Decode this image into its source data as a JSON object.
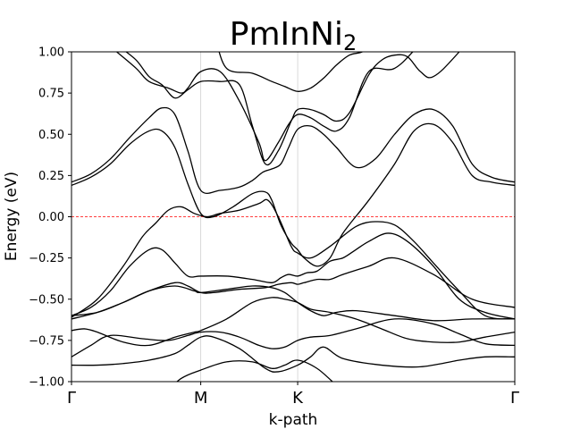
{
  "chart_data": {
    "type": "line",
    "title": "PmInNi",
    "title_subscript": "2",
    "xlabel": "k-path",
    "ylabel": "Energy (eV)",
    "ylim": [
      -1.0,
      1.0
    ],
    "yticks": [
      "-1.00",
      "-0.75",
      "-0.50",
      "-0.25",
      "0.00",
      "0.25",
      "0.50",
      "0.75",
      "1.00"
    ],
    "ytick_values": [
      -1.0,
      -0.75,
      -0.5,
      -0.25,
      0.0,
      0.25,
      0.5,
      0.75,
      1.0
    ],
    "kpoints": [
      {
        "label": "Γ",
        "x": 0.0
      },
      {
        "label": "M",
        "x": 1.0
      },
      {
        "label": "K",
        "x": 1.75
      },
      {
        "label": "Γ",
        "x": 3.43
      }
    ],
    "xlim": [
      0.0,
      3.43
    ],
    "fermi_level": 0.0,
    "fermi_color": "#ff0000",
    "band_color": "#000000",
    "gridlines": "vertical at high-symmetry points",
    "bands": [
      {
        "x": [
          0.0,
          0.3,
          0.55,
          0.7,
          0.85,
          1.0,
          1.2,
          1.4,
          1.55,
          1.65,
          1.75,
          1.9,
          2.05,
          2.2,
          2.5,
          2.8,
          3.1,
          3.43
        ],
        "y": [
          -1.25,
          -1.2,
          -1.15,
          -1.08,
          -0.98,
          -0.93,
          -0.88,
          -0.88,
          -0.92,
          -0.9,
          -0.87,
          -0.92,
          -1.02,
          -1.1,
          -1.2,
          -1.25,
          -1.25,
          -1.25
        ]
      },
      {
        "x": [
          0.0,
          0.2,
          0.4,
          0.6,
          0.8,
          0.9,
          1.0,
          1.1,
          1.3,
          1.5,
          1.6,
          1.75,
          1.85,
          1.95,
          2.1,
          2.4,
          2.7,
          3.0,
          3.2,
          3.43
        ],
        "y": [
          -0.9,
          -0.9,
          -0.89,
          -0.87,
          -0.83,
          -0.78,
          -0.73,
          -0.73,
          -0.8,
          -0.92,
          -0.94,
          -0.9,
          -0.85,
          -0.79,
          -0.86,
          -0.9,
          -0.91,
          -0.87,
          -0.85,
          -0.85
        ]
      },
      {
        "x": [
          0.0,
          0.15,
          0.3,
          0.55,
          0.75,
          0.9,
          1.0,
          1.15,
          1.3,
          1.45,
          1.55,
          1.65,
          1.75,
          1.85,
          2.0,
          2.2,
          2.5,
          2.8,
          3.0,
          3.2,
          3.43
        ],
        "y": [
          -0.85,
          -0.78,
          -0.72,
          -0.74,
          -0.75,
          -0.72,
          -0.7,
          -0.7,
          -0.73,
          -0.78,
          -0.8,
          -0.79,
          -0.75,
          -0.73,
          -0.72,
          -0.68,
          -0.62,
          -0.65,
          -0.71,
          -0.77,
          -0.78
        ]
      },
      {
        "x": [
          0.0,
          0.1,
          0.2,
          0.4,
          0.6,
          0.8,
          0.95,
          1.0,
          1.2,
          1.4,
          1.55,
          1.65,
          1.75,
          1.85,
          2.0,
          2.2,
          2.4,
          2.6,
          2.8,
          3.0,
          3.2,
          3.43
        ],
        "y": [
          -0.69,
          -0.68,
          -0.7,
          -0.76,
          -0.78,
          -0.73,
          -0.7,
          -0.69,
          -0.62,
          -0.52,
          -0.49,
          -0.5,
          -0.52,
          -0.56,
          -0.58,
          -0.62,
          -0.68,
          -0.74,
          -0.76,
          -0.76,
          -0.73,
          -0.7
        ]
      },
      {
        "x": [
          0.0,
          0.2,
          0.4,
          0.6,
          0.8,
          0.95,
          1.0,
          1.2,
          1.4,
          1.55,
          1.65,
          1.75,
          1.85,
          1.95,
          2.05,
          2.2,
          2.5,
          2.8,
          3.1,
          3.43
        ],
        "y": [
          -0.62,
          -0.58,
          -0.52,
          -0.45,
          -0.42,
          -0.45,
          -0.46,
          -0.44,
          -0.42,
          -0.43,
          -0.46,
          -0.52,
          -0.57,
          -0.6,
          -0.58,
          -0.57,
          -0.6,
          -0.63,
          -0.62,
          -0.62
        ]
      },
      {
        "x": [
          0.0,
          0.2,
          0.4,
          0.6,
          0.8,
          0.9,
          1.0,
          1.1,
          1.3,
          1.5,
          1.6,
          1.7,
          1.75,
          1.8,
          1.9,
          2.0,
          2.1,
          2.3,
          2.5,
          2.8,
          3.1,
          3.43
        ],
        "y": [
          -0.6,
          -0.58,
          -0.52,
          -0.45,
          -0.4,
          -0.42,
          -0.46,
          -0.46,
          -0.44,
          -0.43,
          -0.41,
          -0.4,
          -0.41,
          -0.4,
          -0.38,
          -0.38,
          -0.35,
          -0.3,
          -0.25,
          -0.35,
          -0.5,
          -0.55
        ]
      },
      {
        "x": [
          0.0,
          0.15,
          0.3,
          0.45,
          0.6,
          0.7,
          0.8,
          0.9,
          1.0,
          1.2,
          1.4,
          1.55,
          1.62,
          1.68,
          1.75,
          1.82,
          1.9,
          2.0,
          2.1,
          2.2,
          2.3,
          2.45,
          2.6,
          2.8,
          3.0,
          3.2,
          3.43
        ],
        "y": [
          -0.6,
          -0.55,
          -0.45,
          -0.3,
          -0.2,
          -0.2,
          -0.28,
          -0.36,
          -0.36,
          -0.36,
          -0.38,
          -0.4,
          -0.37,
          -0.35,
          -0.36,
          -0.34,
          -0.33,
          -0.27,
          -0.25,
          -0.2,
          -0.15,
          -0.1,
          -0.15,
          -0.3,
          -0.5,
          -0.58,
          -0.62
        ]
      },
      {
        "x": [
          0.0,
          0.2,
          0.4,
          0.55,
          0.65,
          0.75,
          0.85,
          0.95,
          1.05,
          1.15,
          1.3,
          1.45,
          1.52,
          1.6,
          1.7,
          1.75,
          1.85,
          2.0,
          2.2,
          2.35,
          2.5,
          2.65,
          2.8,
          3.0,
          3.2,
          3.43
        ],
        "y": [
          -0.61,
          -0.5,
          -0.3,
          -0.12,
          -0.04,
          0.04,
          0.06,
          0.02,
          0.0,
          0.02,
          0.04,
          0.08,
          0.1,
          0.0,
          -0.18,
          -0.22,
          -0.25,
          -0.18,
          -0.06,
          -0.03,
          -0.05,
          -0.15,
          -0.28,
          -0.45,
          -0.6,
          -0.62
        ]
      },
      {
        "x": [
          0.0,
          0.15,
          0.3,
          0.45,
          0.6,
          0.7,
          0.8,
          0.9,
          1.0,
          1.1,
          1.25,
          1.4,
          1.5,
          1.55,
          1.62,
          1.7,
          1.75,
          1.8,
          1.9,
          2.0,
          2.1,
          2.3,
          2.5,
          2.65,
          2.8,
          2.95,
          3.1,
          3.25,
          3.43
        ],
        "y": [
          0.19,
          0.24,
          0.32,
          0.44,
          0.52,
          0.52,
          0.42,
          0.2,
          0.02,
          0.0,
          0.06,
          0.14,
          0.15,
          0.1,
          -0.05,
          -0.16,
          -0.2,
          -0.25,
          -0.3,
          -0.25,
          -0.1,
          0.1,
          0.32,
          0.52,
          0.56,
          0.45,
          0.25,
          0.21,
          0.19
        ]
      },
      {
        "x": [
          0.0,
          0.15,
          0.3,
          0.45,
          0.6,
          0.7,
          0.8,
          0.9,
          1.0,
          1.15,
          1.3,
          1.4,
          1.48,
          1.55,
          1.62,
          1.68,
          1.75,
          1.85,
          1.95,
          2.05,
          2.2,
          2.35,
          2.5,
          2.65,
          2.8,
          2.95,
          3.1,
          3.25,
          3.43
        ],
        "y": [
          0.21,
          0.26,
          0.35,
          0.48,
          0.6,
          0.66,
          0.62,
          0.4,
          0.16,
          0.16,
          0.18,
          0.22,
          0.27,
          0.29,
          0.32,
          0.42,
          0.53,
          0.55,
          0.5,
          0.42,
          0.3,
          0.35,
          0.5,
          0.62,
          0.65,
          0.55,
          0.32,
          0.24,
          0.21
        ]
      },
      {
        "x": [
          0.0,
          0.1,
          0.2,
          0.35,
          0.5,
          0.6,
          0.75,
          0.85,
          0.9,
          1.0,
          1.15,
          1.3,
          1.45,
          1.5,
          1.6,
          1.68,
          1.75,
          1.85,
          1.95,
          2.05,
          2.15,
          2.3,
          2.5,
          2.7,
          3.0,
          3.43
        ],
        "y": [
          1.4,
          1.25,
          1.1,
          1.0,
          0.9,
          0.82,
          0.78,
          0.75,
          0.78,
          0.88,
          0.88,
          0.7,
          0.45,
          0.34,
          0.45,
          0.56,
          0.62,
          0.6,
          0.55,
          0.52,
          0.6,
          0.88,
          0.9,
          1.05,
          1.3,
          1.5
        ]
      },
      {
        "x": [
          0.0,
          0.1,
          0.2,
          0.35,
          0.5,
          0.6,
          0.7,
          0.8,
          0.9,
          1.0,
          1.15,
          1.3,
          1.4,
          1.5,
          1.6,
          1.7,
          1.75,
          1.85,
          1.95,
          2.05,
          2.15,
          2.3,
          2.4,
          2.5,
          2.6,
          2.7,
          2.8,
          3.0,
          3.43
        ],
        "y": [
          1.5,
          1.35,
          1.2,
          1.05,
          0.95,
          0.85,
          0.8,
          0.72,
          0.77,
          0.82,
          0.82,
          0.8,
          0.55,
          0.32,
          0.4,
          0.58,
          0.65,
          0.65,
          0.62,
          0.58,
          0.63,
          0.86,
          0.95,
          0.98,
          0.97,
          0.88,
          0.85,
          1.0,
          1.4
        ]
      },
      {
        "x": [
          1.0,
          1.1,
          1.2,
          1.4,
          1.55,
          1.65,
          1.75,
          1.85,
          1.95,
          2.05,
          2.15,
          2.25,
          2.35
        ],
        "y": [
          1.2,
          1.1,
          0.9,
          0.87,
          0.82,
          0.79,
          0.76,
          0.78,
          0.84,
          0.92,
          0.98,
          1.0,
          1.05
        ]
      }
    ]
  }
}
